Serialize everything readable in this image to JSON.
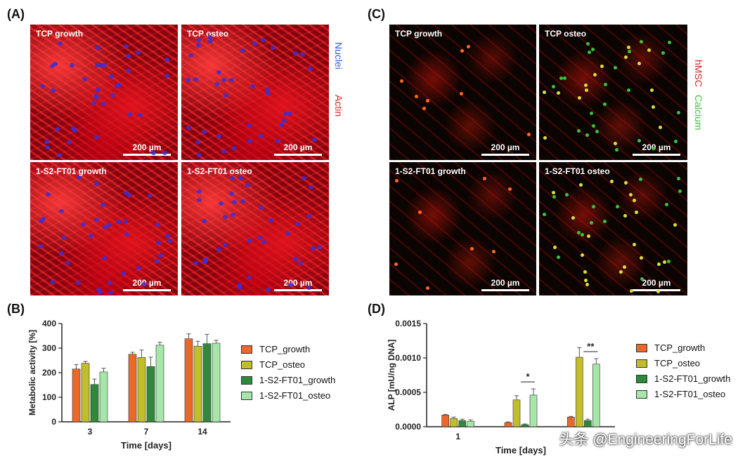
{
  "panels": {
    "A": {
      "label": "(A)",
      "images": [
        "TCP growth",
        "TCP osteo",
        "1-S2-FT01 growth",
        "1-S2-FT01 osteo"
      ],
      "stain1": "Nuclei",
      "stain2": "Actin"
    },
    "C": {
      "label": "(C)",
      "images": [
        "TCP growth",
        "TCP osteo",
        "1-S2-FT01 growth",
        "1-S2-FT01 osteo"
      ],
      "stain1": "hMSC",
      "stain2": "Calcium"
    },
    "B": {
      "label": "(B)"
    },
    "D": {
      "label": "(D)"
    }
  },
  "scale_bar": "200 µm",
  "colors": {
    "TCP_growth": "#e8692a",
    "TCP_osteo": "#c2bd2a",
    "1-S2-FT01_growth": "#2e8a3a",
    "1-S2-FT01_osteo": "#a6e6a8",
    "nuclei": "#2f5fd8",
    "actin": "#e02020",
    "hmsc": "#e02020",
    "calcium": "#3ec03e"
  },
  "chart_data": [
    {
      "type": "bar",
      "xlabel": "Time [days]",
      "ylabel": "Metabolic activity [%]",
      "ylim": [
        0,
        400
      ],
      "yticks": [
        "0",
        "100",
        "200",
        "300",
        "400"
      ],
      "categories": [
        "3",
        "7",
        "14"
      ],
      "legend": "right",
      "series": [
        {
          "name": "TCP_growth",
          "values": [
            215,
            275,
            338
          ],
          "errors": [
            18,
            8,
            20
          ]
        },
        {
          "name": "TCP_osteo",
          "values": [
            238,
            262,
            308
          ],
          "errors": [
            8,
            30,
            20
          ]
        },
        {
          "name": "1-S2-FT01_growth",
          "values": [
            152,
            225,
            318
          ],
          "errors": [
            22,
            38,
            38
          ]
        },
        {
          "name": "1-S2-FT01_osteo",
          "values": [
            203,
            312,
            320
          ],
          "errors": [
            15,
            12,
            12
          ]
        }
      ]
    },
    {
      "type": "bar",
      "xlabel": "Time [days]",
      "ylabel": "ALP [mU/ng DNA]",
      "ylim": [
        0,
        0.0015
      ],
      "yticks": [
        "0.0000",
        "0.0005",
        "0.0010",
        "0.0015"
      ],
      "categories": [
        "1",
        "",
        ""
      ],
      "legend": "right",
      "significance": [
        {
          "group": 1,
          "label": "*"
        },
        {
          "group": 2,
          "label": "**"
        }
      ],
      "series": [
        {
          "name": "TCP_growth",
          "values": [
            0.00017,
            6e-05,
            0.00014
          ],
          "errors": [
            1e-05,
            1e-05,
            1e-05
          ]
        },
        {
          "name": "TCP_osteo",
          "values": [
            0.00012,
            0.00039,
            0.00101
          ],
          "errors": [
            2e-05,
            6e-05,
            0.00014
          ]
        },
        {
          "name": "1-S2-FT01_growth",
          "values": [
            9e-05,
            3e-05,
            9e-05
          ],
          "errors": [
            2e-05,
            1e-05,
            2e-05
          ]
        },
        {
          "name": "1-S2-FT01_osteo",
          "values": [
            8e-05,
            0.00046,
            0.00091
          ],
          "errors": [
            2e-05,
            9e-05,
            8e-05
          ]
        }
      ]
    }
  ],
  "legend_labels": [
    "TCP_growth",
    "TCP_osteo",
    "1-S2-FT01_growth",
    "1-S2-FT01_osteo"
  ],
  "watermark": "头条 @EngineeringForLife"
}
